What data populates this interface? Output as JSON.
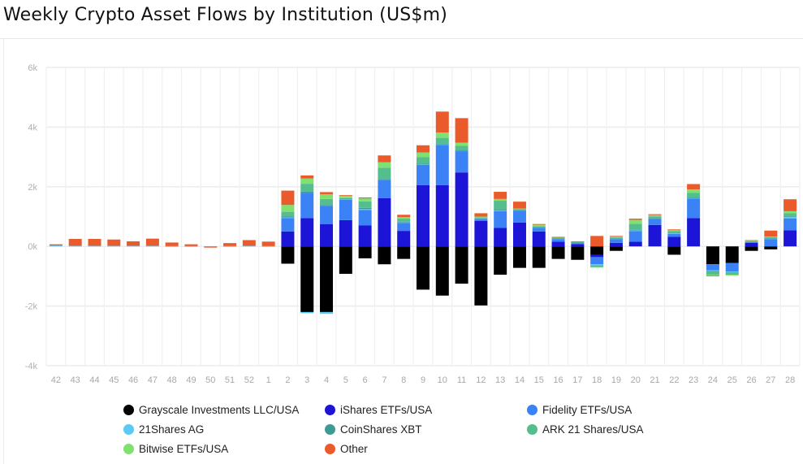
{
  "title": "Weekly Crypto Asset Flows by Institution (US$m)",
  "chart_data": {
    "type": "bar",
    "stacked": true,
    "title": "Weekly Crypto Asset Flows by Institution (US$m)",
    "xlabel": "",
    "ylabel": "",
    "ylim": [
      -4000,
      6000
    ],
    "yticks": [
      6000,
      4000,
      2000,
      0,
      -2000,
      -4000
    ],
    "ytick_labels": [
      "6k",
      "4k",
      "2k",
      "0k",
      "-2k",
      "-4k"
    ],
    "grid": true,
    "legend_position": "bottom",
    "categories": [
      "42",
      "43",
      "44",
      "45",
      "46",
      "47",
      "48",
      "49",
      "50",
      "51",
      "52",
      "1",
      "2",
      "3",
      "4",
      "5",
      "6",
      "7",
      "8",
      "9",
      "10",
      "11",
      "12",
      "13",
      "14",
      "15",
      "16",
      "17",
      "18",
      "19",
      "20",
      "21",
      "22",
      "23",
      "24",
      "25",
      "26",
      "27",
      "28"
    ],
    "series": [
      {
        "name": "Grayscale Investments LLC/USA",
        "color": "#000000",
        "values": [
          0,
          0,
          0,
          0,
          0,
          0,
          0,
          0,
          0,
          0,
          0,
          0,
          -580,
          -2200,
          -2200,
          -920,
          -400,
          -600,
          -420,
          -1450,
          -1650,
          -1250,
          -1980,
          -950,
          -720,
          -720,
          -420,
          -450,
          -280,
          -150,
          0,
          0,
          -280,
          0,
          -600,
          -560,
          -150,
          -100,
          0
        ]
      },
      {
        "name": "iShares ETFs/USA",
        "color": "#1c14d6",
        "values": [
          0,
          0,
          0,
          0,
          0,
          0,
          0,
          0,
          0,
          0,
          0,
          0,
          500,
          950,
          750,
          880,
          700,
          1620,
          520,
          2050,
          2050,
          2480,
          850,
          620,
          800,
          500,
          160,
          80,
          -80,
          120,
          160,
          720,
          320,
          950,
          0,
          0,
          120,
          0,
          540
        ]
      },
      {
        "name": "Fidelity ETFs/USA",
        "color": "#3b82f6",
        "values": [
          0,
          0,
          0,
          0,
          0,
          0,
          0,
          0,
          0,
          0,
          0,
          0,
          450,
          850,
          600,
          680,
          520,
          620,
          270,
          680,
          1350,
          720,
          60,
          560,
          400,
          120,
          80,
          40,
          -240,
          120,
          350,
          200,
          100,
          650,
          -200,
          -280,
          40,
          240,
          400
        ]
      },
      {
        "name": "21Shares AG",
        "color": "#5bc8f5",
        "values": [
          30,
          20,
          20,
          20,
          20,
          20,
          10,
          10,
          0,
          10,
          20,
          10,
          20,
          -40,
          -60,
          20,
          30,
          10,
          20,
          20,
          20,
          10,
          20,
          20,
          10,
          20,
          20,
          10,
          -40,
          20,
          30,
          20,
          20,
          20,
          -30,
          -40,
          10,
          20,
          50
        ]
      },
      {
        "name": "CoinShares XBT",
        "color": "#3f9a96",
        "values": [
          0,
          0,
          0,
          0,
          0,
          0,
          0,
          0,
          0,
          0,
          0,
          0,
          40,
          40,
          40,
          20,
          40,
          10,
          20,
          20,
          20,
          10,
          10,
          30,
          10,
          10,
          10,
          10,
          -10,
          10,
          20,
          10,
          20,
          20,
          -20,
          -10,
          0,
          10,
          20
        ]
      },
      {
        "name": "ARK 21 Shares/USA",
        "color": "#55be8f",
        "values": [
          0,
          0,
          0,
          0,
          0,
          0,
          0,
          0,
          0,
          0,
          0,
          0,
          150,
          260,
          200,
          20,
          220,
          380,
          100,
          220,
          200,
          150,
          30,
          300,
          30,
          20,
          20,
          10,
          -40,
          30,
          200,
          60,
          50,
          160,
          -100,
          -60,
          10,
          40,
          100
        ]
      },
      {
        "name": "Bitwise ETFs/USA",
        "color": "#80e070",
        "values": [
          0,
          0,
          0,
          0,
          0,
          0,
          0,
          0,
          0,
          0,
          0,
          0,
          230,
          180,
          160,
          80,
          100,
          180,
          50,
          160,
          180,
          110,
          30,
          60,
          20,
          60,
          20,
          10,
          -20,
          30,
          130,
          40,
          40,
          110,
          -30,
          -30,
          10,
          20,
          70
        ]
      },
      {
        "name": "Other",
        "color": "#ea5a2b",
        "values": [
          40,
          230,
          230,
          210,
          150,
          240,
          120,
          60,
          -40,
          100,
          190,
          150,
          480,
          100,
          70,
          20,
          30,
          230,
          80,
          240,
          700,
          820,
          110,
          240,
          230,
          20,
          10,
          10,
          350,
          20,
          40,
          30,
          20,
          180,
          -20,
          0,
          20,
          200,
          400
        ]
      }
    ]
  },
  "x_axis": {
    "labels": [
      "42",
      "43",
      "44",
      "45",
      "46",
      "47",
      "48",
      "49",
      "50",
      "51",
      "52",
      "1",
      "2",
      "3",
      "4",
      "5",
      "6",
      "7",
      "8",
      "9",
      "10",
      "11",
      "12",
      "13",
      "14",
      "15",
      "16",
      "17",
      "18",
      "19",
      "20",
      "21",
      "22",
      "23",
      "24",
      "25",
      "26",
      "27",
      "28"
    ]
  },
  "legend": [
    {
      "label": "Grayscale Investments LLC/USA",
      "color": "#000000"
    },
    {
      "label": "iShares ETFs/USA",
      "color": "#1c14d6"
    },
    {
      "label": "Fidelity ETFs/USA",
      "color": "#3b82f6"
    },
    {
      "label": "21Shares AG",
      "color": "#5bc8f5"
    },
    {
      "label": "CoinShares XBT",
      "color": "#3f9a96"
    },
    {
      "label": "ARK 21 Shares/USA",
      "color": "#55be8f"
    },
    {
      "label": "Bitwise ETFs/USA",
      "color": "#80e070"
    },
    {
      "label": "Other",
      "color": "#ea5a2b"
    }
  ]
}
